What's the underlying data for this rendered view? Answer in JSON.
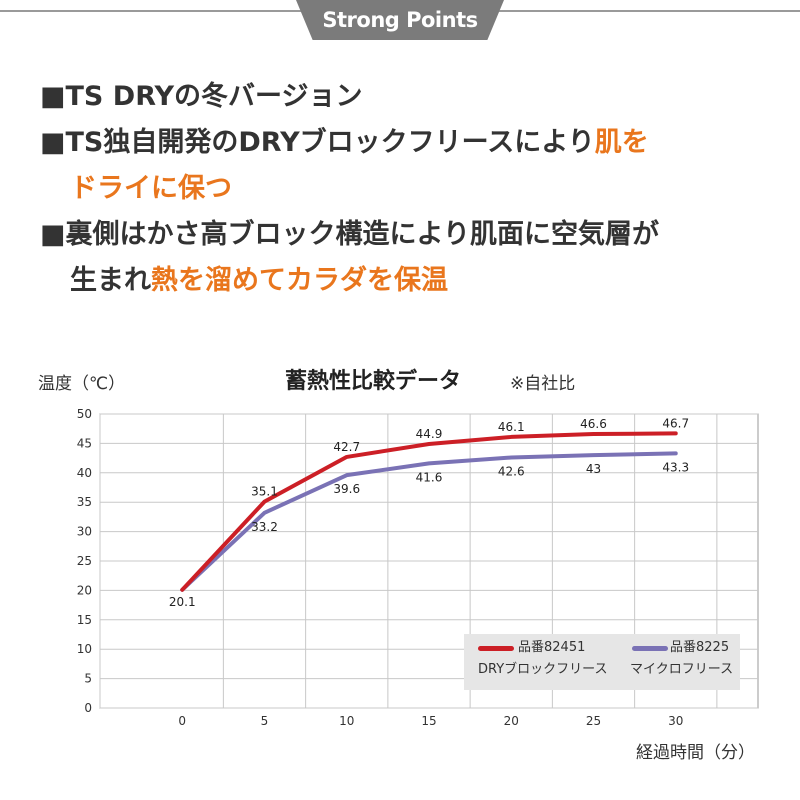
{
  "header": {
    "title": "Strong Points"
  },
  "points": [
    {
      "bullet": "■",
      "lines": [
        {
          "segments": [
            {
              "text": "TS DRYの冬バージョン",
              "hl": false
            }
          ]
        }
      ]
    },
    {
      "bullet": "■",
      "lines": [
        {
          "segments": [
            {
              "text": "TS独自開発のDRYブロックフリースにより",
              "hl": false
            },
            {
              "text": "肌を",
              "hl": true
            }
          ]
        },
        {
          "segments": [
            {
              "text": "ドライに保つ",
              "hl": true
            }
          ]
        }
      ]
    },
    {
      "bullet": "■",
      "lines": [
        {
          "segments": [
            {
              "text": "裏側はかさ高ブロック構造により肌面に空気層が",
              "hl": false
            }
          ]
        },
        {
          "segments": [
            {
              "text": "生まれ",
              "hl": false
            },
            {
              "text": "熱を溜めてカラダを保温",
              "hl": true
            }
          ]
        }
      ]
    }
  ],
  "chart_data": {
    "type": "line",
    "title": "蓄熱性比較データ",
    "note": "※自社比",
    "xlabel": "経過時間（分）",
    "ylabel": "温度（℃）",
    "x": [
      0,
      5,
      10,
      15,
      20,
      25,
      30
    ],
    "xlim": [
      -5,
      35
    ],
    "ylim": [
      0,
      50
    ],
    "yticks": [
      0,
      5,
      10,
      15,
      20,
      25,
      30,
      35,
      40,
      45,
      50
    ],
    "grid": true,
    "legend_position": "bottom-right",
    "series": [
      {
        "name": "品番82451",
        "subname": "DRYブロックフリース",
        "color": "#cc1f26",
        "values": [
          20.1,
          35.1,
          42.7,
          44.9,
          46.1,
          46.6,
          46.7
        ],
        "labels": [
          "20.1",
          "35.1",
          "42.7",
          "44.9",
          "46.1",
          "46.6",
          "46.7"
        ]
      },
      {
        "name": "品番8225",
        "subname": "マイクロフリース",
        "color": "#7a72b5",
        "values": [
          20.1,
          33.2,
          39.6,
          41.6,
          42.6,
          43,
          43.3
        ],
        "labels": [
          "",
          "33.2",
          "39.6",
          "41.6",
          "42.6",
          "43",
          "43.3"
        ]
      }
    ]
  },
  "colors": {
    "highlight": "#e9761d",
    "text": "#333333",
    "header_bg": "#7b7b7b"
  }
}
